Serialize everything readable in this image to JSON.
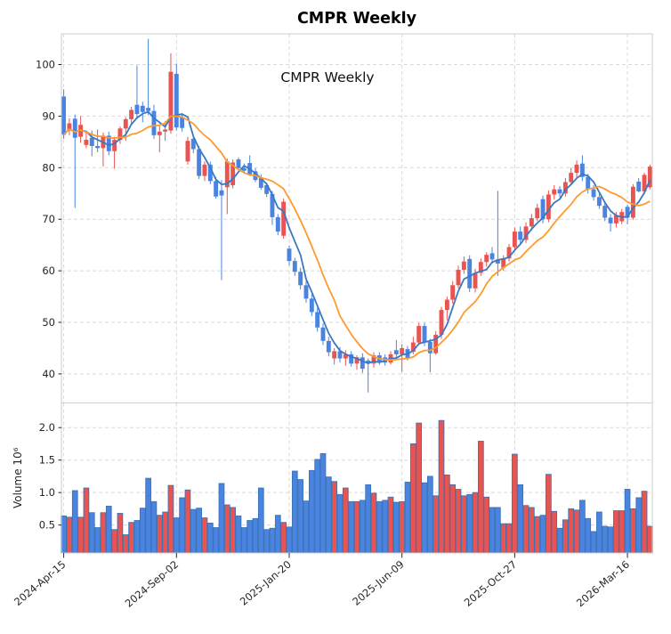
{
  "title": "CMPR  Weekly",
  "inplot_label": "CMPR  Weekly",
  "colors": {
    "up": "#e85451",
    "down": "#4a84e0",
    "ma_short": "#3a78c2",
    "ma_long": "#ff9a2e",
    "volume_edge": "#3b74b5",
    "grid": "#d9d9d9",
    "spine": "#c9cdd4",
    "tick_text": "#262626",
    "title_text": "#000000"
  },
  "price_axis": {
    "ticks": [
      40,
      50,
      60,
      70,
      80,
      90,
      100
    ]
  },
  "volume_axis": {
    "ticks": [
      0.5,
      1.0,
      1.5,
      2.0
    ],
    "label": "Volume  10⁶"
  },
  "x_axis": {
    "tick_labels": [
      "2024-Apr-15",
      "2024-Sep-02",
      "2025-Jan-20",
      "2025-Jun-09",
      "2025-Oct-27",
      "2026-Mar-16"
    ],
    "tick_indices": [
      0,
      20,
      40,
      60,
      80,
      100
    ]
  },
  "chart_data": {
    "type": "candlestick+volume-bar",
    "title": "CMPR Weekly",
    "frequency": "weekly",
    "legend_position": "none",
    "grid": "dashed",
    "price_ylim": [
      34.4,
      106.0
    ],
    "volume_ylim_millions": [
      0.07,
      2.38
    ],
    "ma_windows": {
      "short": 4,
      "long": 10
    },
    "up_means": "close >= open (red)",
    "down_means": "close < open (blue)",
    "dates": [
      "2024-04-15",
      "2024-04-22",
      "2024-04-29",
      "2024-05-06",
      "2024-05-13",
      "2024-05-20",
      "2024-05-27",
      "2024-06-03",
      "2024-06-10",
      "2024-06-17",
      "2024-06-24",
      "2024-07-01",
      "2024-07-08",
      "2024-07-15",
      "2024-07-22",
      "2024-07-29",
      "2024-08-05",
      "2024-08-12",
      "2024-08-19",
      "2024-08-26",
      "2024-09-02",
      "2024-09-09",
      "2024-09-16",
      "2024-09-23",
      "2024-09-30",
      "2024-10-07",
      "2024-10-14",
      "2024-10-21",
      "2024-10-28",
      "2024-11-04",
      "2024-11-11",
      "2024-11-18",
      "2024-11-25",
      "2024-12-02",
      "2024-12-09",
      "2024-12-16",
      "2024-12-23",
      "2024-12-30",
      "2025-01-06",
      "2025-01-13",
      "2025-01-20",
      "2025-01-27",
      "2025-02-03",
      "2025-02-10",
      "2025-02-17",
      "2025-02-24",
      "2025-03-03",
      "2025-03-10",
      "2025-03-17",
      "2025-03-24",
      "2025-03-31",
      "2025-04-07",
      "2025-04-14",
      "2025-04-21",
      "2025-04-28",
      "2025-05-05",
      "2025-05-12",
      "2025-05-19",
      "2025-05-26",
      "2025-06-02",
      "2025-06-09",
      "2025-06-16",
      "2025-06-23",
      "2025-06-30",
      "2025-07-07",
      "2025-07-14",
      "2025-07-21",
      "2025-07-28",
      "2025-08-04",
      "2025-08-11",
      "2025-08-18",
      "2025-08-25",
      "2025-09-01",
      "2025-09-08",
      "2025-09-15",
      "2025-09-22",
      "2025-09-29",
      "2025-10-06",
      "2025-10-13",
      "2025-10-20",
      "2025-10-27",
      "2025-11-03",
      "2025-11-10",
      "2025-11-17",
      "2025-11-24",
      "2025-12-01",
      "2025-12-08",
      "2025-12-15",
      "2025-12-22",
      "2025-12-29",
      "2026-01-05",
      "2026-01-12",
      "2026-01-19",
      "2026-01-26",
      "2026-02-02",
      "2026-02-09",
      "2026-02-16",
      "2026-02-23",
      "2026-03-02",
      "2026-03-09",
      "2026-03-16",
      "2026-03-23",
      "2026-03-30",
      "2026-04-06",
      "2026-04-13"
    ],
    "open": [
      93.8,
      87.2,
      89.5,
      86.0,
      84.4,
      85.8,
      84.2,
      83.8,
      86.2,
      83.2,
      85.4,
      87.6,
      89.4,
      92.2,
      92.0,
      91.6,
      91.0,
      86.3,
      87.0,
      87.2,
      98.2,
      89.8,
      81.2,
      85.6,
      83.6,
      78.4,
      80.6,
      77.4,
      75.6,
      76.2,
      76.6,
      81.6,
      79.9,
      80.9,
      79.3,
      78.1,
      76.6,
      74.9,
      70.4,
      66.8,
      64.3,
      61.9,
      59.8,
      57.2,
      54.6,
      52.0,
      49.0,
      46.4,
      43.0,
      44.4,
      43.0,
      43.8,
      42.0,
      43.2,
      42.6,
      42.0,
      43.6,
      43.2,
      42.2,
      44.6,
      43.8,
      44.8,
      44.3,
      46.1,
      49.3,
      46.2,
      44.0,
      47.6,
      52.4,
      54.4,
      57.2,
      60.2,
      62.3,
      56.6,
      59.6,
      61.7,
      63.4,
      62.2,
      60.6,
      62.4,
      64.6,
      67.6,
      66.0,
      68.6,
      70.2,
      73.9,
      70.0,
      74.8,
      75.8,
      75.0,
      77.2,
      79.0,
      80.8,
      78.2,
      75.8,
      74.3,
      72.6,
      70.3,
      69.2,
      69.6,
      72.4,
      70.3,
      77.3,
      75.4,
      76.2
    ],
    "high": [
      95.2,
      89.6,
      90.3,
      90.0,
      86.8,
      87.2,
      87.4,
      86.8,
      87.0,
      86.0,
      88.0,
      89.8,
      91.8,
      99.8,
      92.8,
      105.0,
      92.2,
      88.2,
      89.0,
      102.2,
      100.2,
      90.6,
      86.0,
      86.0,
      84.2,
      81.2,
      81.2,
      78.2,
      77.6,
      81.8,
      81.6,
      82.0,
      80.8,
      82.4,
      79.9,
      78.7,
      77.1,
      75.5,
      71.0,
      74.0,
      64.9,
      62.5,
      60.6,
      58.0,
      55.4,
      52.8,
      49.8,
      47.2,
      45.0,
      45.2,
      44.6,
      44.4,
      43.6,
      44.0,
      43.0,
      44.2,
      44.2,
      43.8,
      44.4,
      46.6,
      45.8,
      45.4,
      47.2,
      49.9,
      49.9,
      46.8,
      48.3,
      53.0,
      55.0,
      58.0,
      61.0,
      62.8,
      63.0,
      60.4,
      62.4,
      63.6,
      64.6,
      75.5,
      63.0,
      65.2,
      68.4,
      68.6,
      69.4,
      71.0,
      73.0,
      74.6,
      75.6,
      76.6,
      76.4,
      78.0,
      80.0,
      81.4,
      82.4,
      78.8,
      76.6,
      75.0,
      73.2,
      71.0,
      71.4,
      72.0,
      72.8,
      76.8,
      78.0,
      79.0,
      80.6
    ],
    "low": [
      85.6,
      86.3,
      72.2,
      84.8,
      83.8,
      82.2,
      83.0,
      80.2,
      82.4,
      79.8,
      84.6,
      85.2,
      88.2,
      89.8,
      88.8,
      90.2,
      85.6,
      83.0,
      85.2,
      86.6,
      87.2,
      87.0,
      80.6,
      82.8,
      77.8,
      77.4,
      76.8,
      74.0,
      58.2,
      71.0,
      76.0,
      79.6,
      78.8,
      78.5,
      77.2,
      75.7,
      74.3,
      68.9,
      66.9,
      66.2,
      61.0,
      59.0,
      56.4,
      53.8,
      51.2,
      48.2,
      45.6,
      43.4,
      41.8,
      42.2,
      41.6,
      41.4,
      40.8,
      40.2,
      36.4,
      41.2,
      41.8,
      41.6,
      41.8,
      43.2,
      40.4,
      42.6,
      43.8,
      45.6,
      45.4,
      40.3,
      43.7,
      46.8,
      50.4,
      53.6,
      56.6,
      59.4,
      55.9,
      55.8,
      59.0,
      60.8,
      61.4,
      59.0,
      60.0,
      61.8,
      63.8,
      65.2,
      65.4,
      67.8,
      69.6,
      69.2,
      69.4,
      73.8,
      74.2,
      74.4,
      76.6,
      78.0,
      77.4,
      75.0,
      73.6,
      72.0,
      69.6,
      67.6,
      68.4,
      69.0,
      69.0,
      69.9,
      75.2,
      74.8,
      75.8
    ],
    "close": [
      86.4,
      88.6,
      85.8,
      88.3,
      85.4,
      84.2,
      83.8,
      86.2,
      83.2,
      85.4,
      87.6,
      89.4,
      91.2,
      90.4,
      90.8,
      91.0,
      86.3,
      87.0,
      87.4,
      98.6,
      87.8,
      87.7,
      85.2,
      83.6,
      78.4,
      80.6,
      77.4,
      74.4,
      74.6,
      81.2,
      81.0,
      79.9,
      79.4,
      78.7,
      77.6,
      76.1,
      74.9,
      70.4,
      67.6,
      73.4,
      61.9,
      59.8,
      57.2,
      54.6,
      52.0,
      49.0,
      46.4,
      44.2,
      44.4,
      43.0,
      43.8,
      42.0,
      43.2,
      41.0,
      42.0,
      43.6,
      42.4,
      42.2,
      43.8,
      43.8,
      45.0,
      43.0,
      46.1,
      49.3,
      46.2,
      44.0,
      47.6,
      52.4,
      54.4,
      57.2,
      60.2,
      61.8,
      56.6,
      59.6,
      61.7,
      63.1,
      62.2,
      61.4,
      62.4,
      64.6,
      67.6,
      66.0,
      68.6,
      70.2,
      72.2,
      70.0,
      74.8,
      75.8,
      75.0,
      77.2,
      79.0,
      80.6,
      78.2,
      75.8,
      74.3,
      72.6,
      70.3,
      69.2,
      70.8,
      71.4,
      70.3,
      76.3,
      75.4,
      78.6,
      80.2
    ],
    "volume_millions": [
      0.64,
      0.62,
      1.03,
      0.62,
      1.07,
      0.69,
      0.46,
      0.69,
      0.79,
      0.43,
      0.68,
      0.35,
      0.54,
      0.57,
      0.76,
      1.22,
      0.86,
      0.65,
      0.7,
      1.11,
      0.61,
      0.92,
      1.04,
      0.74,
      0.76,
      0.61,
      0.53,
      0.46,
      1.14,
      0.81,
      0.77,
      0.64,
      0.46,
      0.57,
      0.6,
      1.07,
      0.43,
      0.45,
      0.65,
      0.54,
      0.47,
      1.33,
      1.2,
      0.87,
      1.34,
      1.51,
      1.6,
      1.24,
      1.17,
      0.97,
      1.07,
      0.86,
      0.86,
      0.88,
      1.12,
      0.99,
      0.86,
      0.88,
      0.93,
      0.85,
      0.86,
      1.16,
      1.75,
      2.07,
      1.15,
      1.25,
      0.95,
      2.11,
      1.27,
      1.12,
      1.05,
      0.95,
      0.97,
      1.0,
      1.79,
      0.93,
      0.77,
      0.77,
      0.52,
      0.52,
      1.59,
      1.12,
      0.8,
      0.77,
      0.63,
      0.65,
      1.28,
      0.71,
      0.45,
      0.58,
      0.75,
      0.73,
      0.88,
      0.6,
      0.4,
      0.7,
      0.48,
      0.47,
      0.72,
      0.72,
      1.05,
      0.75,
      0.92,
      1.02,
      0.48
    ]
  }
}
